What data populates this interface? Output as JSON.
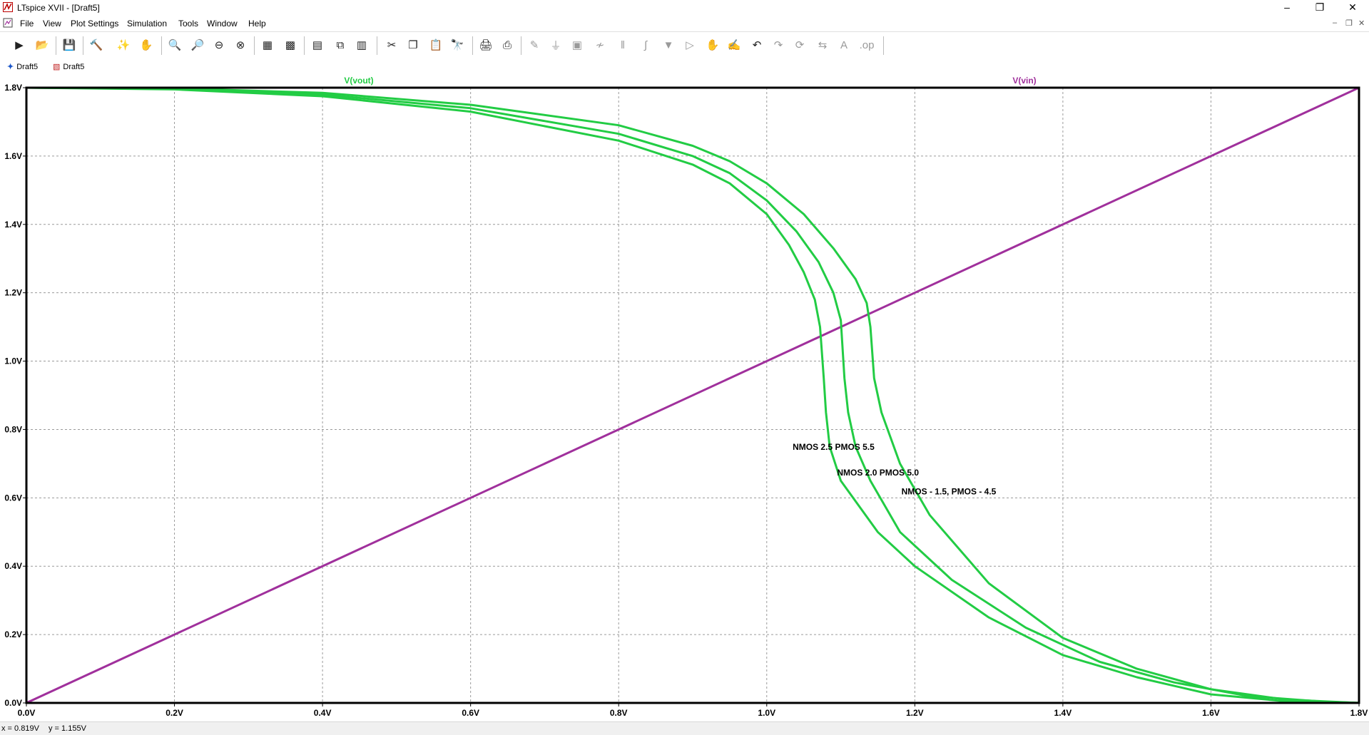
{
  "window": {
    "title": "LTspice XVII - [Draft5]"
  },
  "menu": [
    "File",
    "View",
    "Plot Settings",
    "Simulation",
    "Tools",
    "Window",
    "Help"
  ],
  "toolbar_icons": [
    "run-icon",
    "open-icon",
    "save-icon",
    "control-panel-icon",
    "probe-icon",
    "pan-hand-icon",
    "zoom-in-icon",
    "zoom-area-icon",
    "zoom-out-icon",
    "zoom-full-icon",
    "autorange-icon",
    "add-trace-icon",
    "tile-horizontal-icon",
    "cascade-icon",
    "tile-vertical-icon",
    "cut-icon",
    "copy-icon",
    "paste-icon",
    "find-icon",
    "print-icon",
    "print-preview-icon",
    "wire-icon",
    "ground-icon",
    "label-icon",
    "resistor-icon",
    "capacitor-icon",
    "inductor-icon",
    "diode-icon",
    "component-icon",
    "move-icon",
    "drag-icon",
    "undo-icon",
    "redo-icon",
    "rotate-icon",
    "mirror-icon",
    "text-icon",
    "spice-directive-icon"
  ],
  "tabs": [
    {
      "label": "Draft5",
      "icon": "schematic-icon"
    },
    {
      "label": "Draft5",
      "icon": "waveform-icon"
    }
  ],
  "colors": {
    "vout": "#22cc44",
    "vin": "#a0309c",
    "grid": "#9a9a9a"
  },
  "status": {
    "x": "x = 0.819V",
    "y": "y = 1.155V"
  },
  "chart_data": {
    "type": "line",
    "title": "",
    "xlabel": "",
    "ylabel": "",
    "xlim": [
      0,
      1.8
    ],
    "ylim": [
      0,
      1.8
    ],
    "xticks": [
      "0.0V",
      "0.2V",
      "0.4V",
      "0.6V",
      "0.8V",
      "1.0V",
      "1.2V",
      "1.4V",
      "1.6V",
      "1.8V"
    ],
    "yticks": [
      "0.0V",
      "0.2V",
      "0.4V",
      "0.6V",
      "0.8V",
      "1.0V",
      "1.2V",
      "1.4V",
      "1.6V",
      "1.8V"
    ],
    "grid": true,
    "legend": [
      "V(vout)",
      "V(vin)"
    ],
    "annotations": [
      {
        "text": "NMOS 2.5 PMOS 5.5",
        "x": 1.035,
        "y": 0.74
      },
      {
        "text": "NMOS 2.0 PMOS 5.0",
        "x": 1.095,
        "y": 0.665
      },
      {
        "text": "NMOS - 1.5, PMOS - 4.5",
        "x": 1.182,
        "y": 0.61
      }
    ],
    "series": [
      {
        "name": "V(vin)",
        "color": "#a0309c",
        "x": [
          0,
          1.8
        ],
        "y": [
          0,
          1.8
        ]
      },
      {
        "name": "V(vout)",
        "color": "#22cc44",
        "x": [
          0,
          0.2,
          0.4,
          0.6,
          0.8,
          0.9,
          0.95,
          1.0,
          1.03,
          1.05,
          1.065,
          1.072,
          1.077,
          1.08,
          1.085,
          1.1,
          1.15,
          1.2,
          1.3,
          1.4,
          1.5,
          1.6,
          1.7,
          1.8
        ],
        "y": [
          1.8,
          1.795,
          1.775,
          1.73,
          1.645,
          1.575,
          1.52,
          1.43,
          1.34,
          1.26,
          1.18,
          1.1,
          0.95,
          0.85,
          0.75,
          0.65,
          0.5,
          0.4,
          0.25,
          0.14,
          0.075,
          0.025,
          0.005,
          0
        ]
      },
      {
        "name": "V(vout)",
        "color": "#22cc44",
        "x": [
          0,
          0.2,
          0.4,
          0.6,
          0.8,
          0.9,
          0.95,
          1.0,
          1.04,
          1.07,
          1.09,
          1.1,
          1.105,
          1.11,
          1.12,
          1.14,
          1.18,
          1.25,
          1.35,
          1.45,
          1.55,
          1.65,
          1.75,
          1.8
        ],
        "y": [
          1.8,
          1.797,
          1.78,
          1.74,
          1.665,
          1.6,
          1.55,
          1.47,
          1.38,
          1.29,
          1.2,
          1.12,
          0.95,
          0.85,
          0.75,
          0.65,
          0.5,
          0.36,
          0.22,
          0.12,
          0.06,
          0.02,
          0.004,
          0
        ]
      },
      {
        "name": "V(vout)",
        "color": "#22cc44",
        "x": [
          0,
          0.2,
          0.4,
          0.6,
          0.8,
          0.9,
          0.95,
          1.0,
          1.05,
          1.09,
          1.12,
          1.135,
          1.14,
          1.145,
          1.155,
          1.18,
          1.22,
          1.3,
          1.4,
          1.5,
          1.6,
          1.7,
          1.8
        ],
        "y": [
          1.8,
          1.798,
          1.785,
          1.75,
          1.69,
          1.63,
          1.585,
          1.52,
          1.43,
          1.33,
          1.24,
          1.17,
          1.1,
          0.95,
          0.85,
          0.7,
          0.55,
          0.35,
          0.19,
          0.1,
          0.04,
          0.01,
          0
        ]
      }
    ]
  }
}
